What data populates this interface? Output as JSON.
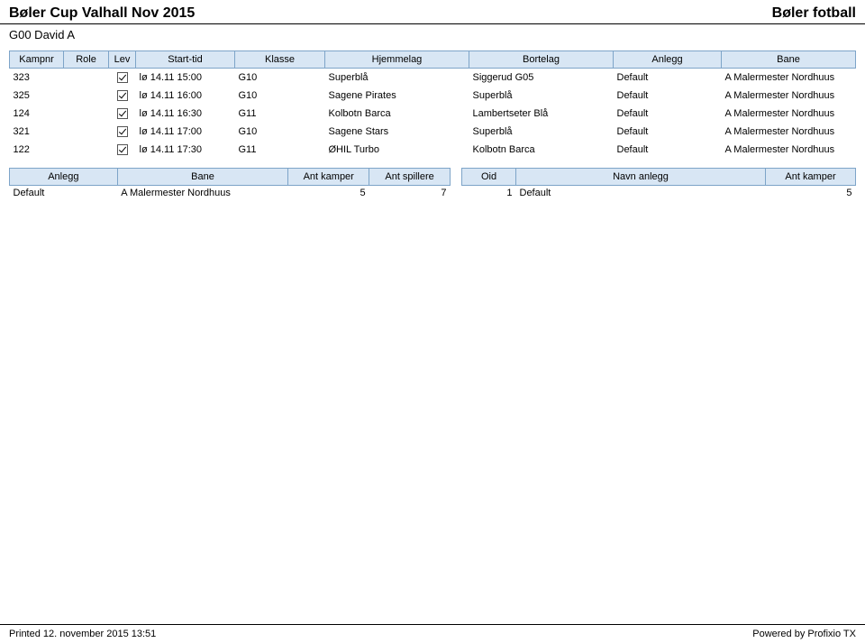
{
  "header": {
    "left": "Bøler Cup Valhall Nov 2015",
    "right": "Bøler fotball"
  },
  "subtitle": "G00 David A",
  "main_table": {
    "columns": [
      "Kampnr",
      "Role",
      "Lev",
      "Start-tid",
      "Klasse",
      "Hjemmelag",
      "Bortelag",
      "Anlegg",
      "Bane"
    ],
    "rows": [
      {
        "kamp": "323",
        "role": "",
        "lev_checked": true,
        "start": "lø 14.11 15:00",
        "klasse": "G10",
        "hjem": "Superblå",
        "bort": "Siggerud G05",
        "anlegg": "Default",
        "bane": "A Malermester Nordhuus"
      },
      {
        "kamp": "325",
        "role": "",
        "lev_checked": true,
        "start": "lø 14.11 16:00",
        "klasse": "G10",
        "hjem": "Sagene Pirates",
        "bort": "Superblå",
        "anlegg": "Default",
        "bane": "A Malermester Nordhuus"
      },
      {
        "kamp": "124",
        "role": "",
        "lev_checked": true,
        "start": "lø 14.11 16:30",
        "klasse": "G11",
        "hjem": "Kolbotn Barca",
        "bort": "Lambertseter Blå",
        "anlegg": "Default",
        "bane": "A Malermester Nordhuus"
      },
      {
        "kamp": "321",
        "role": "",
        "lev_checked": true,
        "start": "lø 14.11 17:00",
        "klasse": "G10",
        "hjem": "Sagene Stars",
        "bort": "Superblå",
        "anlegg": "Default",
        "bane": "A Malermester Nordhuus"
      },
      {
        "kamp": "122",
        "role": "",
        "lev_checked": true,
        "start": "lø 14.11 17:30",
        "klasse": "G11",
        "hjem": "ØHIL Turbo",
        "bort": "Kolbotn Barca",
        "anlegg": "Default",
        "bane": "A Malermester Nordhuus"
      }
    ]
  },
  "summary_left": {
    "columns": [
      "Anlegg",
      "Bane",
      "Ant kamper",
      "Ant spillere"
    ],
    "rows": [
      {
        "anlegg": "Default",
        "bane": "A Malermester Nordhuus",
        "kamper": "5",
        "spillere": "7"
      }
    ]
  },
  "summary_right": {
    "columns": [
      "Oid",
      "Navn anlegg",
      "Ant kamper"
    ],
    "rows": [
      {
        "oid": "1",
        "navn": "Default",
        "kamper": "5"
      }
    ]
  },
  "footer": {
    "left": "Printed 12. november 2015 13:51",
    "right": "Powered by Profixio TX"
  },
  "style": {
    "header_bg": "#d8e6f4",
    "header_border": "#7da4c8",
    "body_font_family": "Verdana, Arial, sans-serif",
    "title_fontsize": 16,
    "cell_fontsize": 11
  }
}
